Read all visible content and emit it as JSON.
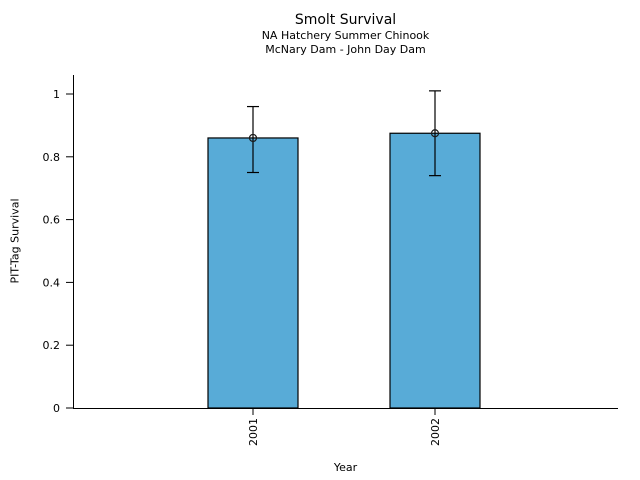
{
  "chart_data": {
    "type": "bar",
    "title": "Smolt Survival",
    "subtitle1": "NA Hatchery Summer Chinook",
    "subtitle2": "McNary Dam - John Day Dam",
    "xlabel": "Year",
    "ylabel": "PIT-Tag Survival",
    "categories": [
      "2001",
      "2002"
    ],
    "values": [
      0.86,
      0.875
    ],
    "error_low": [
      0.75,
      0.74
    ],
    "error_high": [
      0.96,
      1.01
    ],
    "marker": "open-circle",
    "y_ticks": [
      0,
      0.2,
      0.4,
      0.6,
      0.8,
      1
    ],
    "y_tick_labels": [
      "0",
      "0.2",
      "0.4",
      "0.6",
      "0.8",
      "1"
    ],
    "ylim": [
      0,
      1.06
    ],
    "grid": false,
    "legend": "none",
    "bar_color": "#58abd7",
    "bar_edge_color": "#000000",
    "error_color": "#000000",
    "axis_color": "#000000",
    "x_tick_label_rotation_deg": 90
  }
}
